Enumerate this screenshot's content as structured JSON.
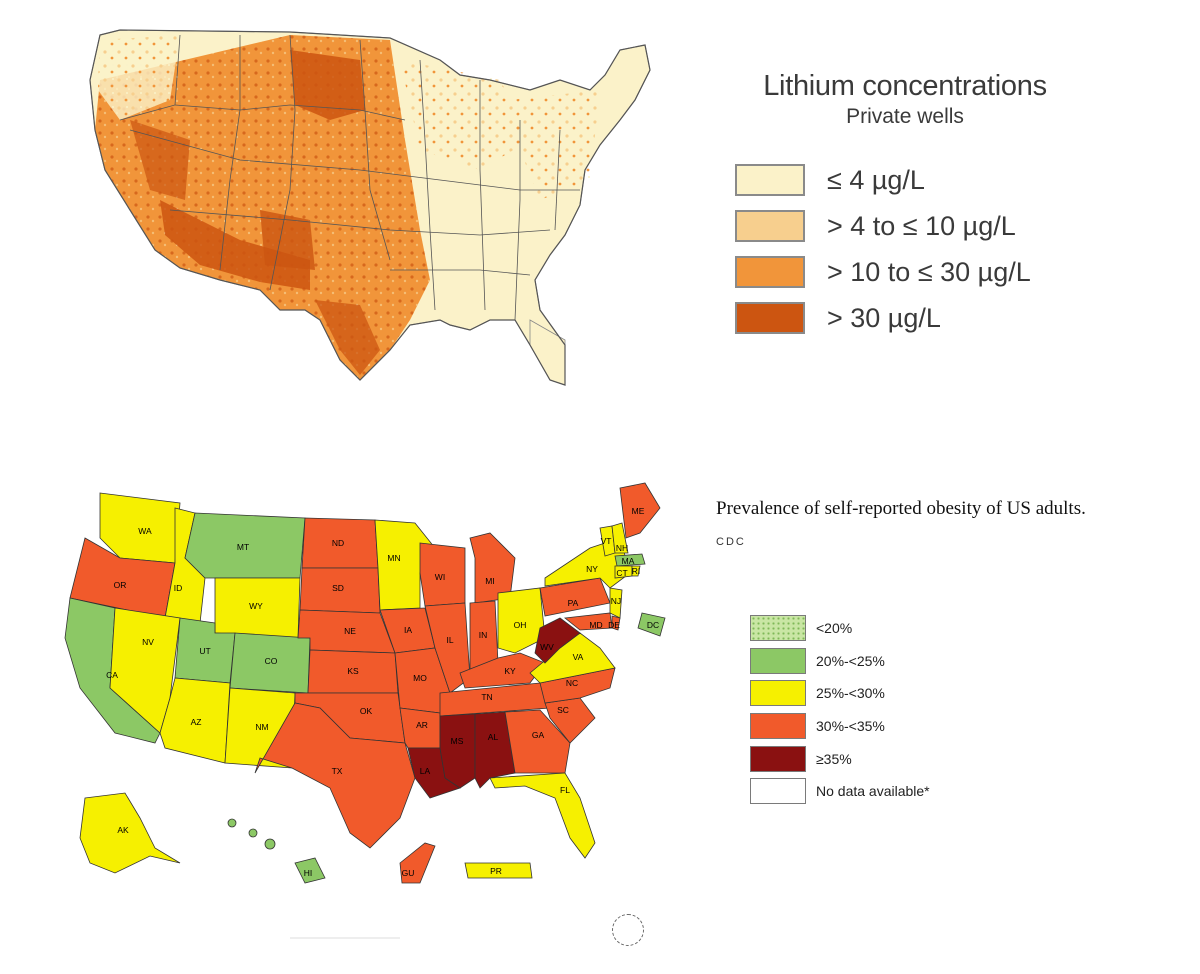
{
  "lithium": {
    "title": "Lithium concentrations",
    "subtitle": "Private wells",
    "legend": [
      {
        "label": "≤ 4 µg/L",
        "color": "#fbf2c9"
      },
      {
        "label": "> 4 to ≤ 10 µg/L",
        "color": "#f7cf8e"
      },
      {
        "label": "> 10 to ≤ 30 µg/L",
        "color": "#f1953a"
      },
      {
        "label": "> 30 µg/L",
        "color": "#cc5511"
      }
    ]
  },
  "obesity": {
    "title": "Prevalence of self-reported obesity of US adults.",
    "source": "CDC",
    "legend": [
      {
        "label": "<20%",
        "color": "#c9e6a4",
        "pattern": "dotted"
      },
      {
        "label": "20%-<25%",
        "color": "#8cc865"
      },
      {
        "label": "25%-<30%",
        "color": "#f6f000"
      },
      {
        "label": "30%-<35%",
        "color": "#f15a2b"
      },
      {
        "label": "≥35%",
        "color": "#8a1111"
      },
      {
        "label": "No data available*",
        "color": "#ffffff"
      }
    ],
    "state_labels": [
      "WA",
      "OR",
      "ID",
      "MT",
      "WY",
      "ND",
      "SD",
      "MN",
      "WI",
      "MI",
      "NY",
      "VT",
      "NH",
      "ME",
      "MA",
      "CT",
      "RI",
      "NJ",
      "MD",
      "DE",
      "DC",
      "PA",
      "OH",
      "IN",
      "IL",
      "IA",
      "NE",
      "KS",
      "MO",
      "KY",
      "WV",
      "VA",
      "NC",
      "TN",
      "SC",
      "GA",
      "AL",
      "MS",
      "AR",
      "LA",
      "OK",
      "TX",
      "NM",
      "AZ",
      "UT",
      "CO",
      "NV",
      "CA",
      "FL",
      "AK",
      "HI",
      "GU",
      "PR"
    ]
  }
}
